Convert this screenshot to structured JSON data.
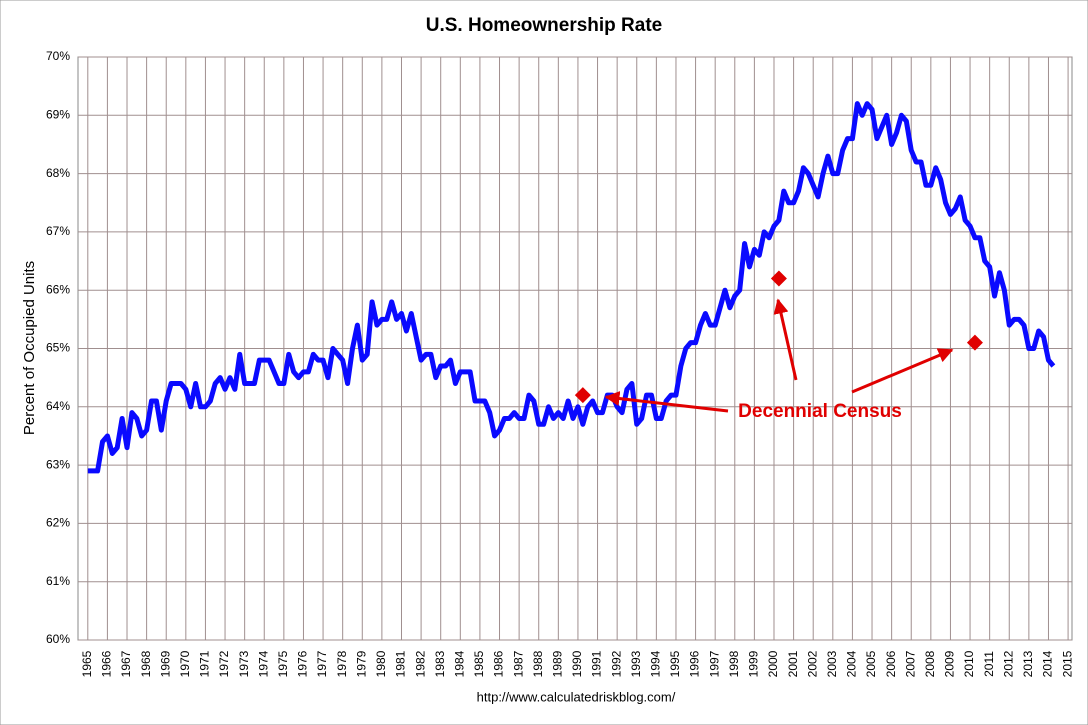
{
  "chart_data": {
    "type": "line",
    "title": "U.S. Homeownership Rate",
    "y_label": "Percent of Occupied Units",
    "source": "http://www.calculatedriskblog.com/",
    "annotation": "Decennial Census",
    "annotation_color": "#e00000",
    "xlim": [
      1964.5,
      2015.2
    ],
    "ylim": [
      60,
      70
    ],
    "xticks": [
      1965,
      1966,
      1967,
      1968,
      1969,
      1970,
      1971,
      1972,
      1973,
      1974,
      1975,
      1976,
      1977,
      1978,
      1979,
      1980,
      1981,
      1982,
      1983,
      1984,
      1985,
      1986,
      1987,
      1988,
      1989,
      1990,
      1991,
      1992,
      1993,
      1994,
      1995,
      1996,
      1997,
      1998,
      1999,
      2000,
      2001,
      2002,
      2003,
      2004,
      2005,
      2006,
      2007,
      2008,
      2009,
      2010,
      2011,
      2012,
      2013,
      2014,
      2015
    ],
    "yticks": [
      {
        "value": 60,
        "label": "60%"
      },
      {
        "value": 61,
        "label": "61%"
      },
      {
        "value": 62,
        "label": "62%"
      },
      {
        "value": 63,
        "label": "63%"
      },
      {
        "value": 64,
        "label": "64%"
      },
      {
        "value": 65,
        "label": "65%"
      },
      {
        "value": 66,
        "label": "66%"
      },
      {
        "value": 67,
        "label": "67%"
      },
      {
        "value": 68,
        "label": "68%"
      },
      {
        "value": 69,
        "label": "69%"
      },
      {
        "value": 70,
        "label": "70%"
      }
    ],
    "grid": true,
    "series": [
      {
        "type": "line",
        "color": "#0a0aff",
        "x": [
          1965,
          1965.25,
          1965.5,
          1965.75,
          1966,
          1966.25,
          1966.5,
          1966.75,
          1967,
          1967.25,
          1967.5,
          1967.75,
          1968,
          1968.25,
          1968.5,
          1968.75,
          1969,
          1969.25,
          1969.5,
          1969.75,
          1970,
          1970.25,
          1970.5,
          1970.75,
          1971,
          1971.25,
          1971.5,
          1971.75,
          1972,
          1972.25,
          1972.5,
          1972.75,
          1973,
          1973.25,
          1973.5,
          1973.75,
          1974,
          1974.25,
          1974.5,
          1974.75,
          1975,
          1975.25,
          1975.5,
          1975.75,
          1976,
          1976.25,
          1976.5,
          1976.75,
          1977,
          1977.25,
          1977.5,
          1977.75,
          1978,
          1978.25,
          1978.5,
          1978.75,
          1979,
          1979.25,
          1979.5,
          1979.75,
          1980,
          1980.25,
          1980.5,
          1980.75,
          1981,
          1981.25,
          1981.5,
          1981.75,
          1982,
          1982.25,
          1982.5,
          1982.75,
          1983,
          1983.25,
          1983.5,
          1983.75,
          1984,
          1984.25,
          1984.5,
          1984.75,
          1985,
          1985.25,
          1985.5,
          1985.75,
          1986,
          1986.25,
          1986.5,
          1986.75,
          1987,
          1987.25,
          1987.5,
          1987.75,
          1988,
          1988.25,
          1988.5,
          1988.75,
          1989,
          1989.25,
          1989.5,
          1989.75,
          1990,
          1990.25,
          1990.5,
          1990.75,
          1991,
          1991.25,
          1991.5,
          1991.75,
          1992,
          1992.25,
          1992.5,
          1992.75,
          1993,
          1993.25,
          1993.5,
          1993.75,
          1994,
          1994.25,
          1994.5,
          1994.75,
          1995,
          1995.25,
          1995.5,
          1995.75,
          1996,
          1996.25,
          1996.5,
          1996.75,
          1997,
          1997.25,
          1997.5,
          1997.75,
          1998,
          1998.25,
          1998.5,
          1998.75,
          1999,
          1999.25,
          1999.5,
          1999.75,
          2000,
          2000.25,
          2000.5,
          2000.75,
          2001,
          2001.25,
          2001.5,
          2001.75,
          2002,
          2002.25,
          2002.5,
          2002.75,
          2003,
          2003.25,
          2003.5,
          2003.75,
          2004,
          2004.25,
          2004.5,
          2004.75,
          2005,
          2005.25,
          2005.5,
          2005.75,
          2006,
          2006.25,
          2006.5,
          2006.75,
          2007,
          2007.25,
          2007.5,
          2007.75,
          2008,
          2008.25,
          2008.5,
          2008.75,
          2009,
          2009.25,
          2009.5,
          2009.75,
          2010,
          2010.25,
          2010.5,
          2010.75,
          2011,
          2011.25,
          2011.5,
          2011.75,
          2012,
          2012.25,
          2012.5,
          2012.75,
          2013,
          2013.25,
          2013.5,
          2013.75,
          2014,
          2014.25
        ],
        "values": [
          62.9,
          62.9,
          62.9,
          63.4,
          63.5,
          63.2,
          63.3,
          63.8,
          63.3,
          63.9,
          63.8,
          63.5,
          63.6,
          64.1,
          64.1,
          63.6,
          64.1,
          64.4,
          64.4,
          64.4,
          64.3,
          64.0,
          64.4,
          64.0,
          64.0,
          64.1,
          64.4,
          64.5,
          64.3,
          64.5,
          64.3,
          64.9,
          64.4,
          64.4,
          64.4,
          64.8,
          64.8,
          64.8,
          64.6,
          64.4,
          64.4,
          64.9,
          64.6,
          64.5,
          64.6,
          64.6,
          64.9,
          64.8,
          64.8,
          64.5,
          65.0,
          64.9,
          64.8,
          64.4,
          65.0,
          65.4,
          64.8,
          64.9,
          65.8,
          65.4,
          65.5,
          65.5,
          65.8,
          65.5,
          65.6,
          65.3,
          65.6,
          65.2,
          64.8,
          64.9,
          64.9,
          64.5,
          64.7,
          64.7,
          64.8,
          64.4,
          64.6,
          64.6,
          64.6,
          64.1,
          64.1,
          64.1,
          63.9,
          63.5,
          63.6,
          63.8,
          63.8,
          63.9,
          63.8,
          63.8,
          64.2,
          64.1,
          63.7,
          63.7,
          64.0,
          63.8,
          63.9,
          63.8,
          64.1,
          63.8,
          64.0,
          63.7,
          64.0,
          64.1,
          63.9,
          63.9,
          64.2,
          64.2,
          64.0,
          63.9,
          64.3,
          64.4,
          63.7,
          63.8,
          64.2,
          64.2,
          63.8,
          63.8,
          64.1,
          64.2,
          64.2,
          64.7,
          65.0,
          65.1,
          65.1,
          65.4,
          65.6,
          65.4,
          65.4,
          65.7,
          66.0,
          65.7,
          65.9,
          66.0,
          66.8,
          66.4,
          66.7,
          66.6,
          67.0,
          66.9,
          67.1,
          67.2,
          67.7,
          67.5,
          67.5,
          67.7,
          68.1,
          68.0,
          67.8,
          67.6,
          68.0,
          68.3,
          68.0,
          68.0,
          68.4,
          68.6,
          68.6,
          69.2,
          69.0,
          69.2,
          69.1,
          68.6,
          68.8,
          69.0,
          68.5,
          68.7,
          69.0,
          68.9,
          68.4,
          68.2,
          68.2,
          67.8,
          67.8,
          68.1,
          67.9,
          67.5,
          67.3,
          67.4,
          67.6,
          67.2,
          67.1,
          66.9,
          66.9,
          66.5,
          66.4,
          65.9,
          66.3,
          66.0,
          65.4,
          65.5,
          65.5,
          65.4,
          65.0,
          65.0,
          65.3,
          65.2,
          64.8,
          64.7
        ]
      },
      {
        "type": "scatter",
        "color": "#e00000",
        "marker": "diamond",
        "x": [
          1990.25,
          2000.25,
          2010.25
        ],
        "values": [
          64.2,
          66.2,
          65.1
        ]
      }
    ]
  }
}
